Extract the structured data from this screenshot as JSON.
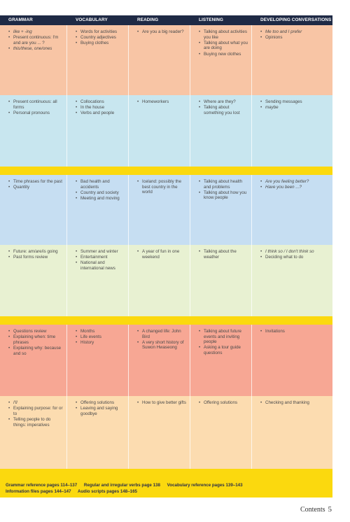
{
  "colors": {
    "header": "#1f2a45",
    "yellow": "#fbd90e",
    "orange_band": "#f8c5a5",
    "blue_band": "#c8e6ef",
    "blue_band2": "#c6def2",
    "green_band": "#e8f1d2",
    "red_band": "#f7a794",
    "peach_band": "#fcdcb0"
  },
  "headers": [
    "GRAMMAR",
    "VOCABULARY",
    "READING",
    "LISTENING",
    "DEVELOPING CONVERSATIONS"
  ],
  "bands": [
    {
      "cols": [
        [
          "like + -ing",
          "Present continuous: I'm and are you ... ?",
          "this/these, one/ones"
        ],
        [
          "Words for activities",
          "Country adjectives",
          "Buying clothes"
        ],
        [
          "Are you a big reader?"
        ],
        [
          "Talking about activities you like",
          "Talking about what you are doing",
          "Buying new clothes"
        ],
        [
          "Me too and I prefer",
          "Opinions"
        ]
      ]
    },
    {
      "cols": [
        [
          "Present continuous: all forms",
          "Personal pronouns"
        ],
        [
          "Collocations",
          "In the house",
          "Verbs and people"
        ],
        [
          "Homeworkers"
        ],
        [
          "Where are they?",
          "Talking about something you lost"
        ],
        [
          "Sending messages",
          "maybe"
        ]
      ]
    },
    {
      "cols": [
        [
          "Time phrases for the past",
          "Quantity"
        ],
        [
          "Bad health and accidents",
          "Country and society",
          "Meeting and moving"
        ],
        [
          "Iceland: possibly the best country in the world"
        ],
        [
          "Talking about health and problems",
          "Talking about how you know people"
        ],
        [
          "Are you feeling better?",
          "Have you been ...?"
        ]
      ]
    },
    {
      "cols": [
        [
          "Future: am/are/is going",
          "Past forms review"
        ],
        [
          "Summer and winter",
          "Entertainment",
          "National and international news"
        ],
        [
          "A year of fun in one weekend"
        ],
        [
          "Talking about the weather"
        ],
        [
          "I think so / I don't think so",
          "Deciding what to do"
        ]
      ]
    },
    {
      "cols": [
        [
          "Questions review",
          "Explaining when: time phrases",
          "Explaining why: because and so"
        ],
        [
          "Months",
          "Life events",
          "History"
        ],
        [
          "A changed life: John Bird",
          "A very short history of Suwon Hwaseong"
        ],
        [
          "Talking about future events and inviting people",
          "Asking a tour guide questions"
        ],
        [
          "Invitations"
        ]
      ]
    },
    {
      "cols": [
        [
          "I'll",
          "Explaining purpose: for or to",
          "Telling people to do things: imperatives"
        ],
        [
          "Offering solutions",
          "Leaving and saying goodbye"
        ],
        [
          "How to give better gifts"
        ],
        [
          "Offering solutions"
        ],
        [
          "Checking and thanking"
        ]
      ]
    }
  ],
  "references": [
    "Grammar reference pages 114–137",
    "Regular and irregular verbs page 138",
    "Vocabulary reference pages 139–143",
    "Information files pages 144–147",
    "Audio scripts pages 148–165"
  ],
  "footer": {
    "label": "Contents",
    "page": "5"
  }
}
